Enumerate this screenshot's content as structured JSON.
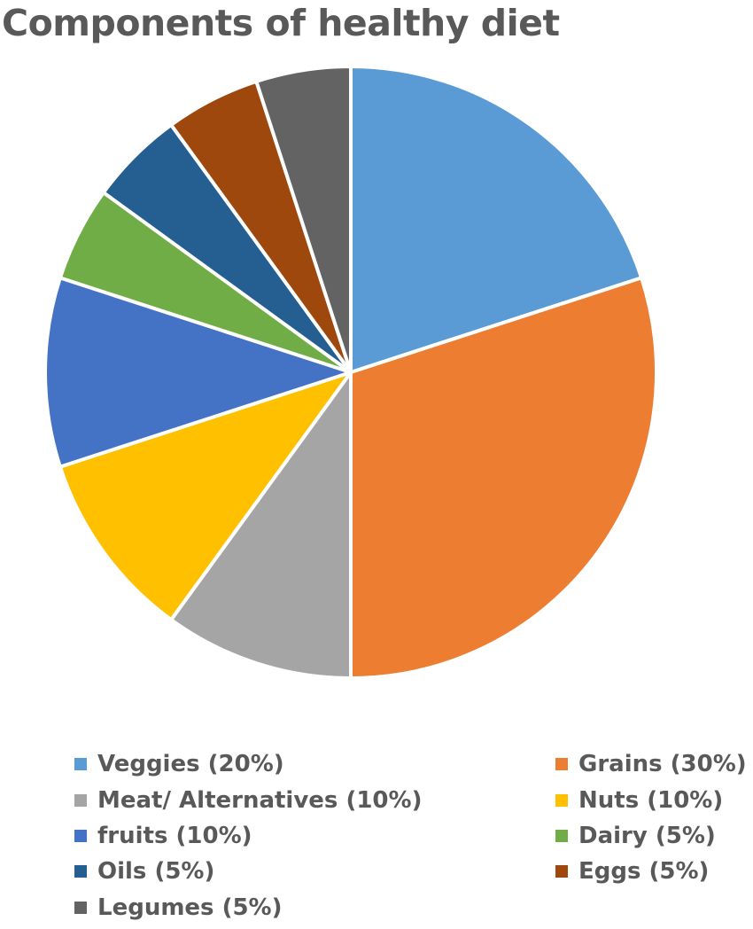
{
  "chart_data": {
    "type": "pie",
    "title": "Components of healthy diet",
    "categories": [
      "Veggies",
      "Grains",
      "Meat/ Alternatives",
      "Nuts",
      "fruits",
      "Dairy",
      "Oils",
      "Eggs",
      "Legumes"
    ],
    "values": [
      20,
      30,
      10,
      10,
      10,
      5,
      5,
      5,
      5
    ],
    "colors": [
      "#5B9BD5",
      "#ED7D31",
      "#A5A5A5",
      "#FFC000",
      "#4472C4",
      "#70AD47",
      "#255E91",
      "#9E480E",
      "#636363"
    ],
    "legend": {
      "position": "bottom",
      "entries": [
        "Veggies (20%)",
        "Grains (30%)",
        "Meat/ Alternatives (10%)",
        "Nuts (10%)",
        "fruits (10%)",
        "Dairy (5%)",
        "Oils (5%)",
        "Eggs (5%)",
        "Legumes (5%)"
      ]
    }
  }
}
